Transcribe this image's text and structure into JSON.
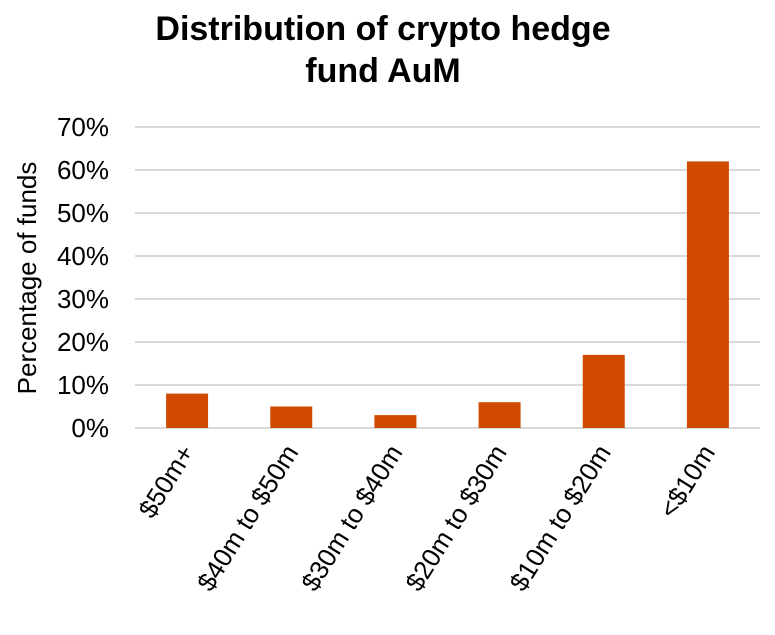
{
  "chart_data": {
    "type": "bar",
    "title_lines": [
      "Distribution of crypto hedge",
      "fund AuM"
    ],
    "ylabel": "Percentage of funds",
    "xlabel": "",
    "categories": [
      "$50m+",
      "$40m to $50m",
      "$30m to $40m",
      "$20m to $30m",
      "$10m to $20m",
      "<$10m"
    ],
    "values": [
      8,
      5,
      3,
      6,
      17,
      62
    ],
    "ylim": [
      0,
      70
    ],
    "yticks": [
      "0%",
      "10%",
      "20%",
      "30%",
      "40%",
      "50%",
      "60%",
      "70%"
    ],
    "grid": true,
    "bar_color": "#d04a02",
    "legend": "none"
  }
}
